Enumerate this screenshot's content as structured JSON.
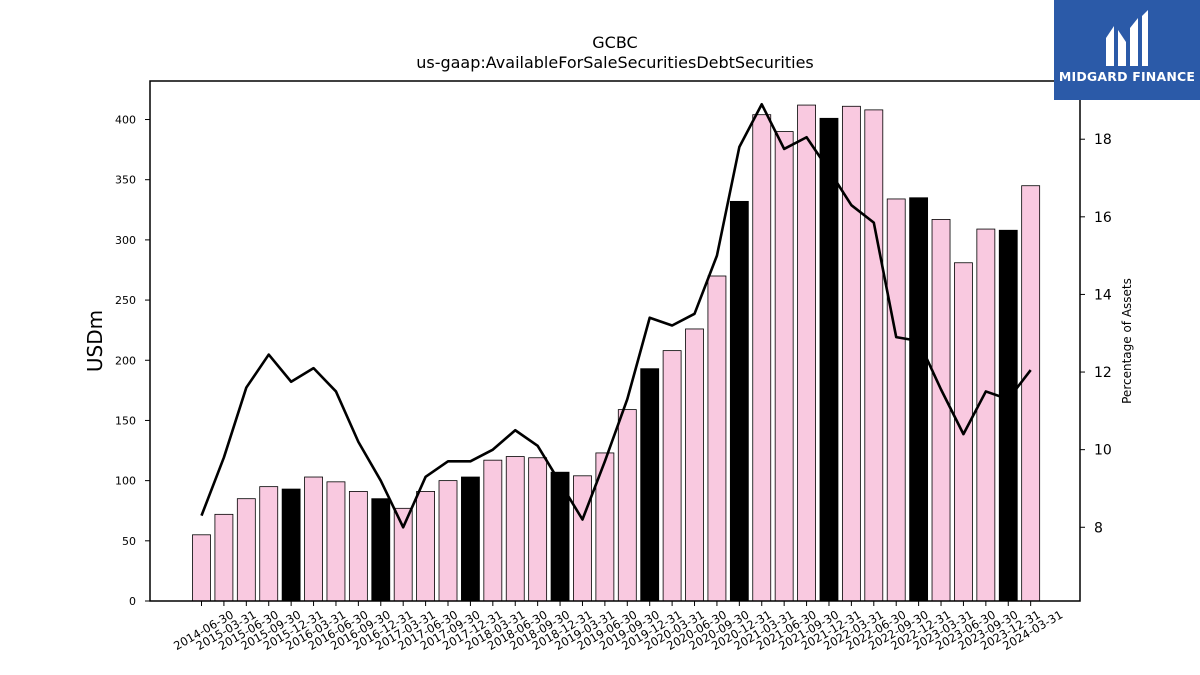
{
  "logo": {
    "text": "MIDGARD FINANCE",
    "color": "#2b5aa8"
  },
  "chart_data": {
    "type": "bar",
    "title": "GCBC",
    "subtitle": "us-gaap:AvailableForSaleSecuritiesDebtSecurities",
    "ylabel": "USDm",
    "y2label": "Percentage of Assets",
    "ylim": [
      0,
      432
    ],
    "y2lim": [
      6.1,
      19.5
    ],
    "yticks": [
      0,
      50,
      100,
      150,
      200,
      250,
      300,
      350,
      400
    ],
    "y2ticks": [
      8,
      10,
      12,
      14,
      16,
      18
    ],
    "colors": {
      "bar_default": "#f9c9e0",
      "bar_highlight": "#000000",
      "line": "#000000"
    },
    "categories": [
      "2014-06-30",
      "2015-03-31",
      "2015-06-30",
      "2015-09-30",
      "2015-12-31",
      "2016-03-31",
      "2016-06-30",
      "2016-09-30",
      "2016-12-31",
      "2017-03-31",
      "2017-06-30",
      "2017-09-30",
      "2017-12-31",
      "2018-03-31",
      "2018-06-30",
      "2018-09-30",
      "2018-12-31",
      "2019-03-31",
      "2019-06-30",
      "2019-09-30",
      "2019-12-31",
      "2020-03-31",
      "2020-06-30",
      "2020-09-30",
      "2020-12-31",
      "2021-03-31",
      "2021-06-30",
      "2021-09-30",
      "2021-12-31",
      "2022-03-31",
      "2022-06-30",
      "2022-09-30",
      "2022-12-31",
      "2023-03-31",
      "2023-06-30",
      "2023-09-30",
      "2023-12-31",
      "2024-03-31"
    ],
    "series": [
      {
        "type": "bar",
        "values": [
          55,
          72,
          85,
          95,
          93,
          103,
          99,
          91,
          85,
          77,
          91,
          100,
          103,
          117,
          120,
          119,
          107,
          104,
          123,
          159,
          193,
          208,
          226,
          270,
          332,
          404,
          390,
          412,
          401,
          411,
          408,
          334,
          335,
          317,
          281,
          309,
          308,
          345
        ],
        "highlight": [
          false,
          false,
          false,
          false,
          true,
          false,
          false,
          false,
          true,
          false,
          false,
          false,
          true,
          false,
          false,
          false,
          true,
          false,
          false,
          false,
          true,
          false,
          false,
          false,
          true,
          false,
          false,
          false,
          true,
          false,
          false,
          false,
          true,
          false,
          false,
          false,
          true,
          false
        ]
      },
      {
        "type": "line",
        "axis": "right",
        "values": [
          8.3,
          9.8,
          11.6,
          12.45,
          11.75,
          12.1,
          11.5,
          10.2,
          9.2,
          8.0,
          9.3,
          9.7,
          9.7,
          10.0,
          10.5,
          10.1,
          9.15,
          8.2,
          9.7,
          11.3,
          13.4,
          13.2,
          13.5,
          15.0,
          17.8,
          18.9,
          17.75,
          18.05,
          17.2,
          16.3,
          15.85,
          12.9,
          12.8,
          11.55,
          10.4,
          11.5,
          11.3,
          12.05
        ]
      }
    ]
  }
}
